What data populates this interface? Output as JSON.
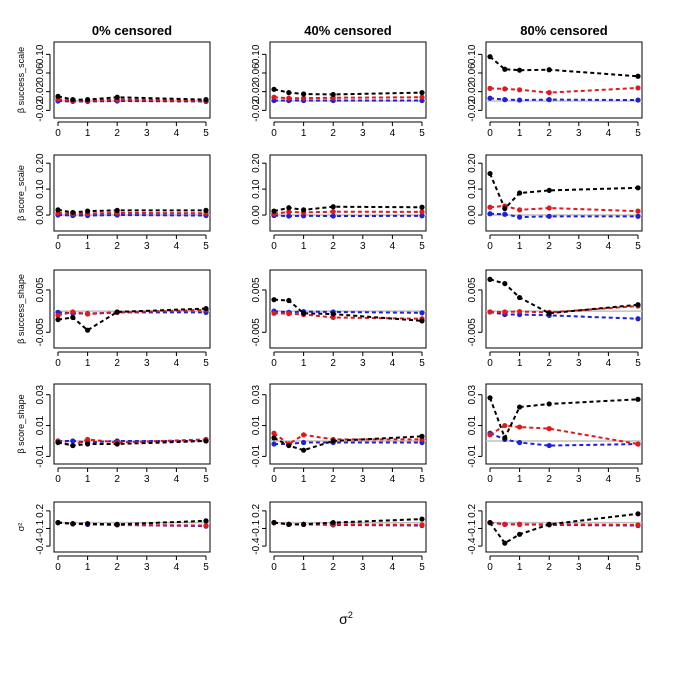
{
  "figure": {
    "xlabel": "σ",
    "xlabel_sup": "2",
    "column_titles": [
      "0% censored",
      "40% censored",
      "80% censored"
    ]
  },
  "colors": {
    "black": "#000000",
    "red": "#e8151b",
    "blue": "#1f1fe0",
    "reference": "#c0c0c0"
  },
  "chart_data": {
    "type": "line",
    "x": [
      0,
      0.5,
      1,
      2,
      5
    ],
    "x_ticks": [
      "0",
      "1",
      "2",
      "3",
      "4",
      "5"
    ],
    "xlim": [
      0,
      5
    ],
    "series_names": [
      "black",
      "red",
      "blue"
    ],
    "rows": [
      {
        "ylabel": "β success_scale",
        "ylim": [
          -0.03,
          0.12
        ],
        "yticks": [
          "-0.02",
          "0.02",
          "0.06",
          "0.10"
        ],
        "ytick_values": [
          -0.02,
          0.02,
          0.06,
          0.1
        ],
        "panels": [
          {
            "black": [
              0.01,
              0.003,
              0.003,
              0.008,
              0.003
            ],
            "red": [
              0.004,
              0.0,
              0.001,
              0.003,
              0.001
            ],
            "blue": [
              0.0,
              -0.001,
              -0.001,
              0.0,
              -0.001
            ]
          },
          {
            "black": [
              0.025,
              0.018,
              0.015,
              0.014,
              0.018
            ],
            "red": [
              0.008,
              0.006,
              0.006,
              0.007,
              0.008
            ],
            "blue": [
              0.001,
              0.001,
              0.001,
              0.001,
              0.001
            ]
          },
          {
            "black": [
              0.095,
              0.068,
              0.066,
              0.067,
              0.053
            ],
            "red": [
              0.027,
              0.026,
              0.024,
              0.018,
              0.028
            ],
            "blue": [
              0.006,
              0.003,
              0.002,
              0.003,
              0.002
            ]
          }
        ]
      },
      {
        "ylabel": "β score_scale",
        "ylim": [
          -0.05,
          0.22
        ],
        "yticks": [
          "0.00",
          "0.10",
          "0.20"
        ],
        "ytick_values": [
          0.0,
          0.1,
          0.2
        ],
        "panels": [
          {
            "black": [
              0.02,
              0.01,
              0.015,
              0.018,
              0.018
            ],
            "red": [
              0.008,
              0.005,
              0.006,
              0.008,
              0.007
            ],
            "blue": [
              0.0,
              -0.002,
              -0.002,
              0.0,
              -0.002
            ]
          },
          {
            "black": [
              0.015,
              0.028,
              0.02,
              0.032,
              0.03
            ],
            "red": [
              0.005,
              0.012,
              0.01,
              0.013,
              0.012
            ],
            "blue": [
              -0.002,
              -0.004,
              -0.003,
              -0.004,
              -0.003
            ]
          },
          {
            "black": [
              0.16,
              0.025,
              0.085,
              0.095,
              0.105
            ],
            "red": [
              0.03,
              0.035,
              0.02,
              0.027,
              0.015
            ],
            "blue": [
              0.005,
              0.003,
              -0.008,
              -0.005,
              -0.005
            ]
          }
        ]
      },
      {
        "ylabel": "β success_shape",
        "ylim": [
          -0.008,
          0.009
        ],
        "yticks": [
          "-0.005",
          "0.005"
        ],
        "ytick_values": [
          -0.005,
          0.005
        ],
        "panels": [
          {
            "black": [
              -0.002,
              -0.0015,
              -0.0045,
              -0.0002,
              0.0006
            ],
            "red": [
              -0.001,
              -0.0002,
              -0.0007,
              -0.0003,
              0.0003
            ],
            "blue": [
              -0.0003,
              -0.0005,
              -0.0006,
              -0.0003,
              -0.0003
            ]
          },
          {
            "black": [
              0.0027,
              0.0025,
              -0.0005,
              -0.0007,
              -0.0023
            ],
            "red": [
              -0.0005,
              -0.0006,
              -0.0008,
              -0.0015,
              -0.0018
            ],
            "blue": [
              0.0,
              -0.0003,
              -0.0001,
              -0.0002,
              -0.0004
            ]
          },
          {
            "black": [
              0.0075,
              0.0065,
              0.0032,
              -0.0005,
              0.0015
            ],
            "red": [
              -0.0002,
              -0.0002,
              -0.0001,
              -0.0003,
              0.0012
            ],
            "blue": [
              -0.0002,
              -0.0008,
              -0.0008,
              -0.001,
              -0.0018
            ]
          }
        ]
      },
      {
        "ylabel": "β score_shape",
        "ylim": [
          -0.013,
          0.035
        ],
        "yticks": [
          "-0.01",
          "0.01",
          "0.03"
        ],
        "ytick_values": [
          -0.01,
          0.01,
          0.03
        ],
        "panels": [
          {
            "black": [
              -0.001,
              -0.003,
              -0.002,
              -0.002,
              0.0
            ],
            "red": [
              0.0,
              -0.003,
              0.001,
              -0.001,
              0.001
            ],
            "blue": [
              0.0,
              0.0,
              -0.001,
              0.0,
              0.0
            ]
          },
          {
            "black": [
              0.002,
              -0.003,
              -0.006,
              0.0,
              0.003
            ],
            "red": [
              0.005,
              -0.002,
              0.004,
              0.001,
              0.001
            ],
            "blue": [
              -0.002,
              -0.002,
              -0.001,
              -0.001,
              -0.001
            ]
          },
          {
            "black": [
              0.028,
              0.002,
              0.022,
              0.024,
              0.027
            ],
            "red": [
              0.004,
              0.01,
              0.009,
              0.008,
              -0.002
            ],
            "blue": [
              0.005,
              0.001,
              -0.001,
              -0.003,
              -0.002
            ]
          }
        ]
      },
      {
        "ylabel": "σ²",
        "ylim": [
          -0.45,
          0.3
        ],
        "yticks": [
          "-0.4",
          "-0.1",
          "0.2"
        ],
        "ytick_values": [
          -0.4,
          -0.1,
          0.2
        ],
        "panels": [
          {
            "black": [
              0.0,
              -0.02,
              -0.02,
              -0.03,
              0.03
            ],
            "red": [
              0.0,
              -0.02,
              -0.02,
              -0.04,
              -0.05
            ],
            "blue": [
              0.0,
              -0.02,
              -0.03,
              -0.04,
              -0.06
            ]
          },
          {
            "black": [
              0.0,
              -0.03,
              -0.03,
              0.0,
              0.06
            ],
            "red": [
              0.0,
              -0.03,
              -0.03,
              -0.03,
              -0.04
            ],
            "blue": [
              0.0,
              -0.03,
              -0.03,
              -0.04,
              -0.05
            ]
          },
          {
            "black": [
              0.0,
              -0.35,
              -0.2,
              -0.03,
              0.15
            ],
            "red": [
              0.0,
              -0.03,
              -0.03,
              -0.03,
              -0.04
            ],
            "blue": [
              0.0,
              -0.03,
              -0.03,
              -0.04,
              -0.05
            ]
          }
        ]
      }
    ]
  }
}
